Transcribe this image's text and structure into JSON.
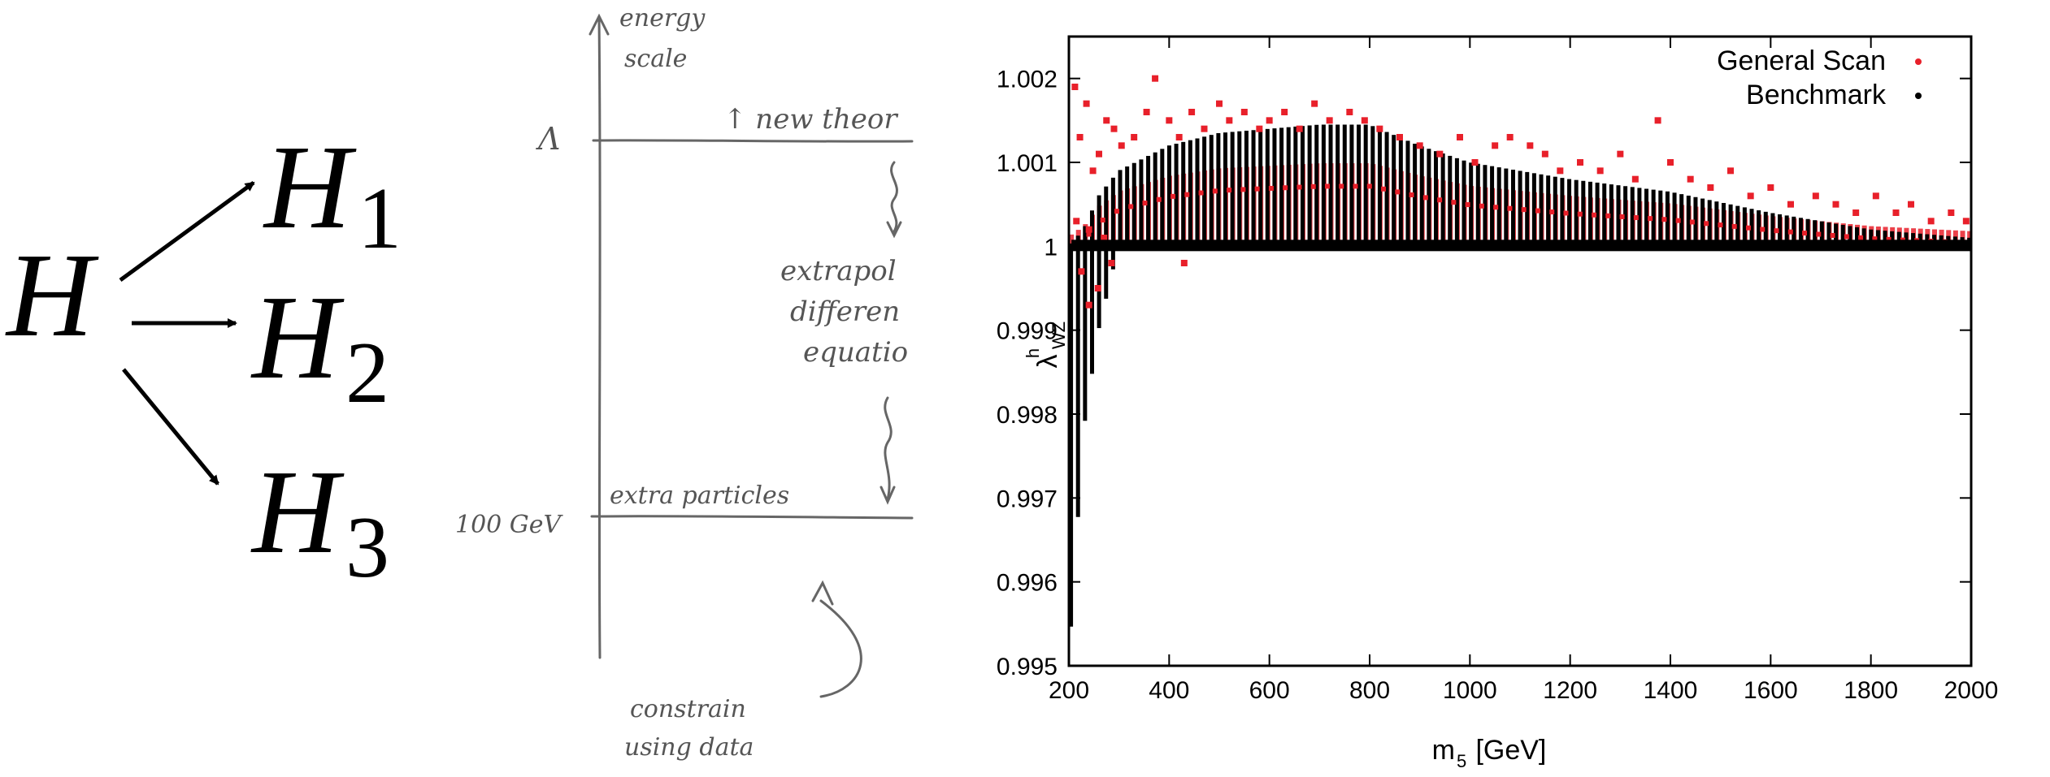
{
  "decay_diagram": {
    "parent": "H",
    "children": [
      {
        "symbol": "H",
        "subscript": "1"
      },
      {
        "symbol": "H",
        "subscript": "2"
      },
      {
        "symbol": "H",
        "subscript": "3"
      }
    ]
  },
  "sketch": {
    "axis_label_line1": "energy",
    "axis_label_line2": "scale",
    "lambda_label": "Λ",
    "new_theory_label": "↑ new theor",
    "extrapolate_line1": "extrapol",
    "extrapolate_line2": "differen",
    "extrapolate_line3": "equatio",
    "low_scale_label": "100 GeV",
    "extra_particles_label": "extra particles",
    "constrain_line1": "constrain",
    "constrain_line2": "using data"
  },
  "chart_data": {
    "type": "scatter",
    "xlabel": "m",
    "xlabel_sub": "5",
    "xlabel_unit": " [GeV]",
    "ylabel": "λ",
    "ylabel_sub": "WZ",
    "ylabel_sup": "h",
    "xlim": [
      200,
      2000
    ],
    "ylim": [
      0.995,
      1.0025
    ],
    "x_ticks": [
      "200",
      "400",
      "600",
      "800",
      "1000",
      "1200",
      "1400",
      "1600",
      "1800",
      "2000"
    ],
    "y_ticks": [
      "0.995",
      "0.996",
      "0.997",
      "0.998",
      "0.999",
      "1",
      "1.001",
      "1.002"
    ],
    "legend_position": "top-right",
    "series": [
      {
        "name": "General Scan",
        "color": "#e8202a"
      },
      {
        "name": "Benchmark",
        "color": "#000000"
      }
    ],
    "benchmark_envelope": {
      "x": [
        200,
        230,
        260,
        300,
        400,
        500,
        600,
        700,
        800,
        900,
        1000,
        1200,
        1400,
        1600,
        1800,
        2000
      ],
      "y_max": [
        1.0,
        1.0002,
        1.0006,
        1.0009,
        1.0012,
        1.00135,
        1.0014,
        1.00145,
        1.00145,
        1.0012,
        1.001,
        1.0008,
        1.00065,
        1.0004,
        1.0002,
        1.0001
      ],
      "y_min": [
        0.995,
        0.9978,
        0.999,
        1.0,
        1.0,
        1.0,
        1.0,
        1.0,
        1.0,
        1.0,
        1.0,
        1.0,
        1.0,
        1.0,
        1.0,
        1.0
      ]
    },
    "general_scan_points": [
      [
        212,
        1.0019
      ],
      [
        222,
        1.0013
      ],
      [
        235,
        1.0017
      ],
      [
        248,
        1.0009
      ],
      [
        260,
        1.0011
      ],
      [
        275,
        1.0015
      ],
      [
        290,
        1.0014
      ],
      [
        305,
        1.0012
      ],
      [
        330,
        1.0013
      ],
      [
        355,
        1.0016
      ],
      [
        372,
        1.002
      ],
      [
        400,
        1.0015
      ],
      [
        420,
        1.0013
      ],
      [
        445,
        1.0016
      ],
      [
        470,
        1.0014
      ],
      [
        500,
        1.0017
      ],
      [
        520,
        1.0015
      ],
      [
        550,
        1.0016
      ],
      [
        580,
        1.0014
      ],
      [
        600,
        1.0015
      ],
      [
        630,
        1.0016
      ],
      [
        660,
        1.0014
      ],
      [
        690,
        1.0017
      ],
      [
        720,
        1.0015
      ],
      [
        760,
        1.0016
      ],
      [
        790,
        1.0015
      ],
      [
        820,
        1.0014
      ],
      [
        860,
        1.0013
      ],
      [
        900,
        1.0012
      ],
      [
        940,
        1.0011
      ],
      [
        980,
        1.0013
      ],
      [
        1010,
        1.001
      ],
      [
        1050,
        1.0012
      ],
      [
        1080,
        1.0013
      ],
      [
        1120,
        1.0012
      ],
      [
        1150,
        1.0011
      ],
      [
        1180,
        1.0009
      ],
      [
        1220,
        1.001
      ],
      [
        1260,
        1.0009
      ],
      [
        1300,
        1.0011
      ],
      [
        1330,
        1.0008
      ],
      [
        1375,
        1.0015
      ],
      [
        1400,
        1.001
      ],
      [
        1440,
        1.0008
      ],
      [
        1480,
        1.0007
      ],
      [
        1520,
        1.0009
      ],
      [
        1560,
        1.0006
      ],
      [
        1600,
        1.0007
      ],
      [
        1640,
        1.0005
      ],
      [
        1690,
        1.0006
      ],
      [
        1730,
        1.0005
      ],
      [
        1770,
        1.0004
      ],
      [
        1810,
        1.0006
      ],
      [
        1850,
        1.0004
      ],
      [
        1880,
        1.0005
      ],
      [
        1920,
        1.0003
      ],
      [
        1960,
        1.0004
      ],
      [
        1990,
        1.0003
      ],
      [
        215,
        1.0003
      ],
      [
        225,
        0.9997
      ],
      [
        240,
        1.0002
      ],
      [
        258,
        0.9995
      ],
      [
        270,
        1.0001
      ],
      [
        285,
        0.9998
      ],
      [
        430,
        0.9998
      ],
      [
        240,
        0.9993
      ]
    ]
  }
}
